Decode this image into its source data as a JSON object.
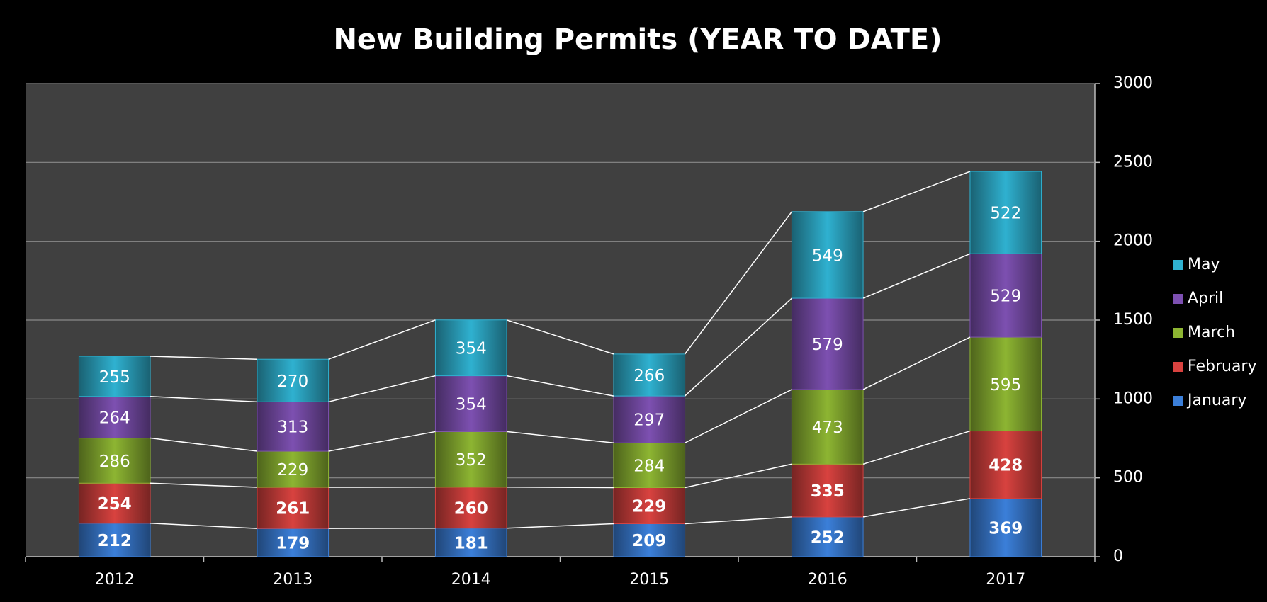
{
  "chart_data": {
    "type": "stacked_bar",
    "title": "New Building Permits (YEAR TO DATE)",
    "categories": [
      "2012",
      "2013",
      "2014",
      "2015",
      "2016",
      "2017"
    ],
    "series": [
      {
        "name": "January",
        "color": "#3b7fd9",
        "values": [
          212,
          179,
          181,
          209,
          252,
          369
        ]
      },
      {
        "name": "February",
        "color": "#d8423f",
        "values": [
          254,
          261,
          260,
          229,
          335,
          428
        ]
      },
      {
        "name": "March",
        "color": "#8db532",
        "values": [
          286,
          229,
          352,
          284,
          473,
          595
        ]
      },
      {
        "name": "April",
        "color": "#7d50b1",
        "values": [
          264,
          313,
          354,
          297,
          579,
          529
        ]
      },
      {
        "name": "May",
        "color": "#2fb1d0",
        "values": [
          255,
          270,
          354,
          266,
          549,
          522
        ]
      }
    ],
    "ylim": [
      0,
      3000
    ],
    "yticks": [
      0,
      500,
      1000,
      1500,
      2000,
      2500,
      3000
    ],
    "grid": true,
    "legend": "right"
  }
}
